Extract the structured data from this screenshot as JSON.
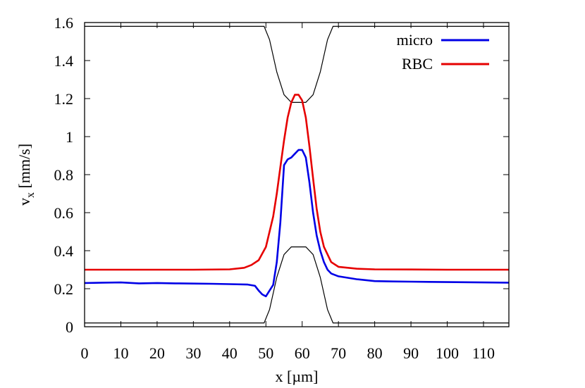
{
  "chart_data": {
    "type": "line",
    "xlabel": "x [µm]",
    "ylabel_main": "v",
    "ylabel_sub": "x",
    "ylabel_unit": " [mm/s]",
    "xlim": [
      0,
      117
    ],
    "ylim": [
      0,
      1.6
    ],
    "x_ticks": [
      0,
      10,
      20,
      30,
      40,
      50,
      60,
      70,
      80,
      90,
      100,
      110
    ],
    "x_tick_labels": [
      "0",
      "10",
      "20",
      "30",
      "40",
      "50",
      "60",
      "70",
      "80",
      "90",
      "100",
      "110"
    ],
    "y_ticks": [
      0,
      0.2,
      0.4,
      0.6,
      0.8,
      1.0,
      1.2,
      1.4,
      1.6
    ],
    "y_tick_labels": [
      "0",
      "0.2",
      "0.4",
      "0.6",
      "0.8",
      "1",
      "1.2",
      "1.4",
      "1.6"
    ],
    "grid": false,
    "legend_position": "top-right",
    "series": [
      {
        "name": "micro",
        "color": "#0000e6",
        "x": [
          0,
          5,
          10,
          15,
          20,
          25,
          30,
          35,
          40,
          45,
          47,
          48,
          49,
          50,
          51,
          52,
          53,
          54,
          55,
          56,
          57,
          58,
          59,
          60,
          61,
          62,
          63,
          64,
          65,
          66,
          67,
          68,
          70,
          75,
          80,
          85,
          90,
          95,
          100,
          105,
          110,
          117
        ],
        "y": [
          0.23,
          0.232,
          0.233,
          0.228,
          0.23,
          0.228,
          0.227,
          0.226,
          0.224,
          0.222,
          0.215,
          0.19,
          0.17,
          0.16,
          0.19,
          0.22,
          0.34,
          0.55,
          0.85,
          0.88,
          0.89,
          0.91,
          0.93,
          0.93,
          0.89,
          0.76,
          0.6,
          0.48,
          0.4,
          0.34,
          0.3,
          0.28,
          0.265,
          0.25,
          0.24,
          0.238,
          0.237,
          0.236,
          0.235,
          0.234,
          0.233,
          0.232
        ]
      },
      {
        "name": "RBC",
        "color": "#e60000",
        "x": [
          0,
          10,
          20,
          30,
          40,
          44,
          46,
          48,
          50,
          52,
          53,
          54,
          55,
          56,
          57,
          58,
          59,
          60,
          61,
          62,
          63,
          64,
          65,
          66,
          68,
          70,
          75,
          80,
          90,
          100,
          110,
          117
        ],
        "y": [
          0.3,
          0.3,
          0.3,
          0.3,
          0.302,
          0.31,
          0.325,
          0.35,
          0.42,
          0.58,
          0.7,
          0.84,
          0.98,
          1.1,
          1.18,
          1.22,
          1.22,
          1.19,
          1.1,
          0.95,
          0.78,
          0.62,
          0.5,
          0.42,
          0.34,
          0.315,
          0.305,
          0.302,
          0.301,
          0.3,
          0.3,
          0.3
        ]
      }
    ],
    "geometry_lines": [
      {
        "color": "#000000",
        "x": [
          0,
          49.5,
          51,
          53,
          55,
          57,
          58,
          60,
          61,
          63,
          65,
          67,
          68.5,
          117
        ],
        "y": [
          0.02,
          0.02,
          0.09,
          0.26,
          0.38,
          0.42,
          0.42,
          0.42,
          0.42,
          0.38,
          0.26,
          0.09,
          0.02,
          0.02
        ]
      },
      {
        "color": "#000000",
        "x": [
          0,
          49.5,
          51,
          53,
          55,
          57,
          58,
          60,
          61,
          63,
          65,
          67,
          68.5,
          117
        ],
        "y": [
          1.58,
          1.58,
          1.51,
          1.34,
          1.22,
          1.18,
          1.18,
          1.18,
          1.18,
          1.22,
          1.34,
          1.51,
          1.58,
          1.58
        ]
      }
    ]
  }
}
